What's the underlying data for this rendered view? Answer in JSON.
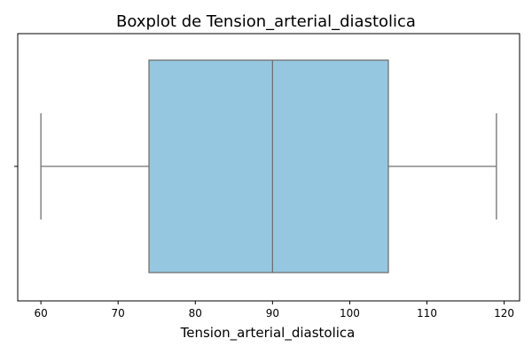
{
  "chart_data": {
    "type": "boxplot",
    "title": "Boxplot de Tension_arterial_diastolica",
    "xlabel": "Tension_arterial_diastolica",
    "ylabel": "",
    "orientation": "horizontal",
    "xlim": [
      57,
      122
    ],
    "x_ticks": [
      60,
      70,
      80,
      90,
      100,
      110,
      120
    ],
    "grid": false,
    "legend": "none",
    "series": [
      {
        "min": 60,
        "q1": 74,
        "median": 90,
        "q3": 105,
        "max": 119
      }
    ],
    "colors": {
      "box_fill": "#95c8e0",
      "box_edge": "#707070",
      "axis": "#000000"
    }
  }
}
